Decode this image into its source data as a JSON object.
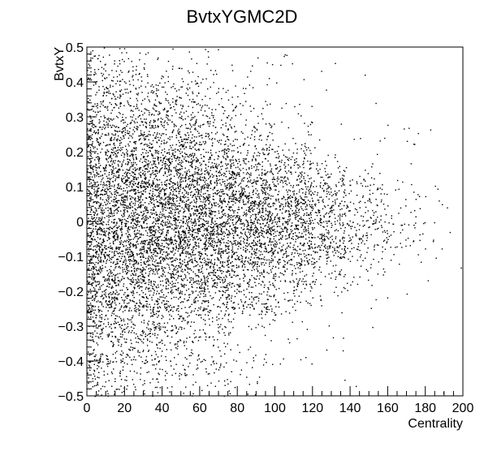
{
  "chart_data": {
    "type": "scatter",
    "title": "BvtxYGMC2D",
    "xlabel": "Centrality",
    "ylabel": "BvtxY",
    "xlim": [
      0,
      200
    ],
    "ylim": [
      -0.5,
      0.5
    ],
    "x_ticks": [
      {
        "value": 0,
        "label": "0"
      },
      {
        "value": 20,
        "label": "20"
      },
      {
        "value": 40,
        "label": "40"
      },
      {
        "value": 60,
        "label": "60"
      },
      {
        "value": 80,
        "label": "80"
      },
      {
        "value": 100,
        "label": "100"
      },
      {
        "value": 120,
        "label": "120"
      },
      {
        "value": 140,
        "label": "140"
      },
      {
        "value": 160,
        "label": "160"
      },
      {
        "value": 180,
        "label": "180"
      },
      {
        "value": 200,
        "label": "200"
      }
    ],
    "y_ticks": [
      {
        "value": -0.5,
        "label": "−0.5"
      },
      {
        "value": -0.4,
        "label": "−0.4"
      },
      {
        "value": -0.3,
        "label": "−0.3"
      },
      {
        "value": -0.2,
        "label": "−0.2"
      },
      {
        "value": -0.1,
        "label": "−0.1"
      },
      {
        "value": 0,
        "label": "0"
      },
      {
        "value": 0.1,
        "label": "0.1"
      },
      {
        "value": 0.2,
        "label": "0.2"
      },
      {
        "value": 0.3,
        "label": "0.3"
      },
      {
        "value": 0.4,
        "label": "0.4"
      },
      {
        "value": 0.5,
        "label": "0.5"
      }
    ],
    "grid": false,
    "legend": "none",
    "marker_color": "#000000",
    "density_model": {
      "description_of_distribution": "dense core around y=0 for centrality 0-120, broadening band that fades toward 180",
      "x_segments": [
        {
          "x_range": [
            0,
            20
          ],
          "y_sigma": 0.25,
          "weight": 1.0
        },
        {
          "x_range": [
            20,
            40
          ],
          "y_sigma": 0.22,
          "weight": 0.95
        },
        {
          "x_range": [
            40,
            60
          ],
          "y_sigma": 0.19,
          "weight": 0.85
        },
        {
          "x_range": [
            60,
            80
          ],
          "y_sigma": 0.16,
          "weight": 0.7
        },
        {
          "x_range": [
            80,
            100
          ],
          "y_sigma": 0.14,
          "weight": 0.55
        },
        {
          "x_range": [
            100,
            120
          ],
          "y_sigma": 0.12,
          "weight": 0.4
        },
        {
          "x_range": [
            120,
            140
          ],
          "y_sigma": 0.1,
          "weight": 0.22
        },
        {
          "x_range": [
            140,
            160
          ],
          "y_sigma": 0.09,
          "weight": 0.1
        },
        {
          "x_range": [
            160,
            180
          ],
          "y_sigma": 0.08,
          "weight": 0.035
        },
        {
          "x_range": [
            180,
            200
          ],
          "y_sigma": 0.08,
          "weight": 0.008
        }
      ],
      "uniform_background_fraction": 0.06
    }
  }
}
